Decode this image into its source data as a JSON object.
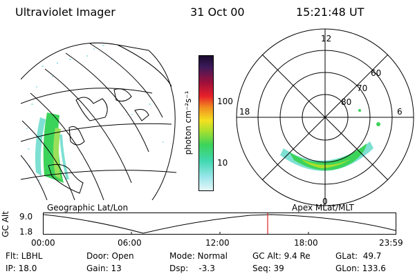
{
  "header": {
    "instrument": "Ultraviolet Imager",
    "date": "31 Oct 00",
    "time": "15:21:48 UT"
  },
  "colorbar": {
    "label": "photon cm⁻²s⁻¹",
    "ticks": [
      "100",
      "10"
    ]
  },
  "geo_panel": {
    "label": "Geographic Lat/Lon"
  },
  "polar_panel": {
    "label": "Apex MLat/MLT",
    "mlt_labels": [
      "12",
      "18",
      "6",
      "0"
    ],
    "lat_labels": [
      "60",
      "70",
      "80"
    ]
  },
  "altitude_plot": {
    "ylabel": "GC Alt",
    "y_ticks": [
      "9.0",
      "1.8"
    ],
    "x_ticks": [
      "00:00",
      "06:00",
      "12:00",
      "18:00",
      "23:59"
    ],
    "current_time": "15:21:48"
  },
  "info": {
    "flt": "Flt: LBHL",
    "ip": "IP: 18.0",
    "door": "Door: Open",
    "gain": "Gain: 13",
    "mode": "Mode: Normal",
    "dsp": "Dsp:    -3.3",
    "gcalt": "GC Alt: 9.4 Re",
    "seq": "Seq: 39",
    "glat": "GLat:  49.7",
    "glon": "GLon: 133.6"
  },
  "colors": {
    "aurora_green": "#3cd35a",
    "aurora_cyan": "#7ee0d2",
    "current_time_marker": "#e02020"
  }
}
